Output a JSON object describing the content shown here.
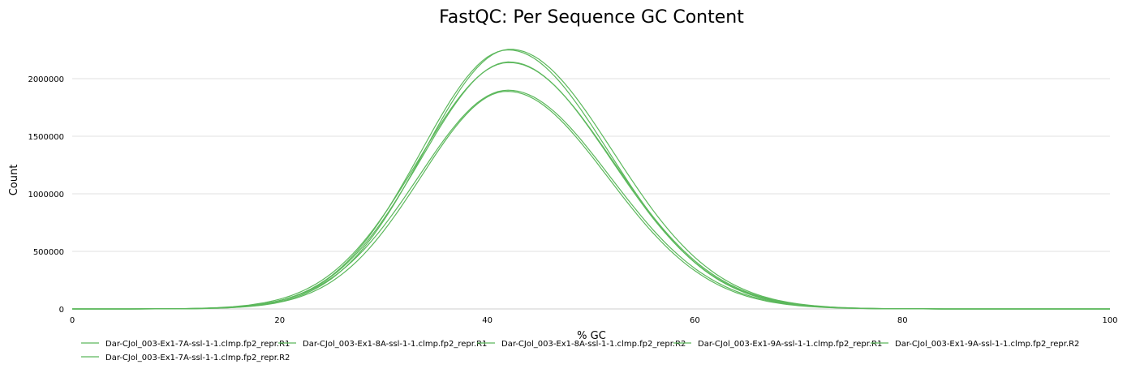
{
  "chart_data": {
    "type": "line",
    "title": "FastQC: Per Sequence GC Content",
    "xlabel": "% GC",
    "ylabel": "Count",
    "xlim": [
      0,
      100
    ],
    "ylim": [
      0,
      2250000
    ],
    "x_ticks": [
      "0",
      "20",
      "40",
      "60",
      "80",
      "100"
    ],
    "y_ticks": [
      "0",
      "500000",
      "1000000",
      "1500000",
      "2000000"
    ],
    "y_tick_values": [
      0,
      500000,
      1000000,
      1500000,
      2000000
    ],
    "x_tick_values": [
      0,
      20,
      40,
      60,
      80,
      100
    ],
    "grid": true,
    "legend_position": "bottom",
    "line_color": "#5cb85c",
    "series": [
      {
        "name": "Dar-CJol_003-Ex1-7A-ssl-1-1.clmp.fp2_repr.R1",
        "peak_x": 42.0,
        "peak_y": 2250000,
        "sigma_left": 8.4,
        "sigma_right": 9.7
      },
      {
        "name": "Dar-CJol_003-Ex1-8A-ssl-1-1.clmp.fp2_repr.R1",
        "peak_x": 42.1,
        "peak_y": 2145000,
        "sigma_left": 8.5,
        "sigma_right": 9.8
      },
      {
        "name": "Dar-CJol_003-Ex1-8A-ssl-1-1.clmp.fp2_repr.R2",
        "peak_x": 42.2,
        "peak_y": 2255000,
        "sigma_left": 8.3,
        "sigma_right": 9.9
      },
      {
        "name": "Dar-CJol_003-Ex1-9A-ssl-1-1.clmp.fp2_repr.R1",
        "peak_x": 41.9,
        "peak_y": 1890000,
        "sigma_left": 8.3,
        "sigma_right": 9.7
      },
      {
        "name": "Dar-CJol_003-Ex1-9A-ssl-1-1.clmp.fp2_repr.R2",
        "peak_x": 42.0,
        "peak_y": 1900000,
        "sigma_left": 8.6,
        "sigma_right": 9.8
      },
      {
        "name": "Dar-CJol_003-Ex1-7A-ssl-1-1.clmp.fp2_repr.R2",
        "peak_x": 42.1,
        "peak_y": 2140000,
        "sigma_left": 8.7,
        "sigma_right": 9.9
      }
    ]
  }
}
